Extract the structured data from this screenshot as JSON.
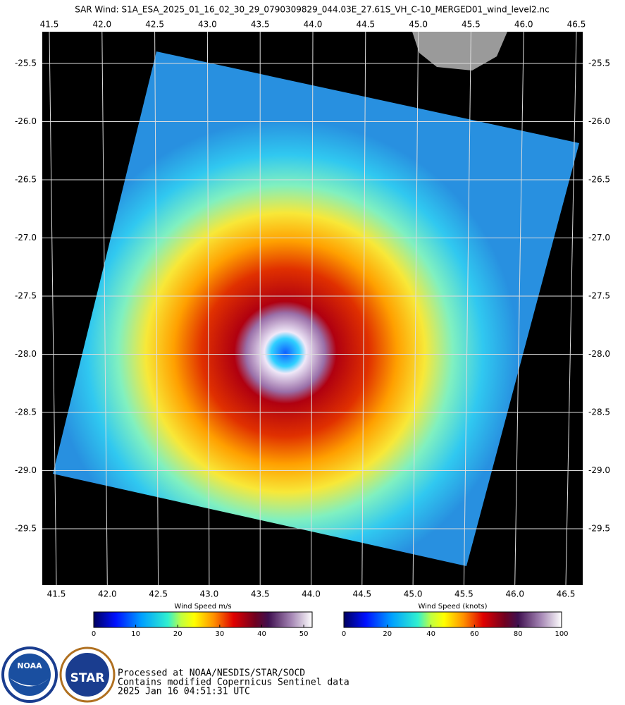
{
  "title": "SAR Wind: S1A_ESA_2025_01_16_02_30_29_0790309829_044.03E_27.61S_VH_C-10_MERGED01_wind_level2.nc",
  "map": {
    "xticks": [
      41.5,
      {
        "value": 42,
        "label": "42.0"
      },
      42.5,
      {
        "value": 43,
        "label": "43.0"
      },
      43.5,
      {
        "value": 44,
        "label": "44.0"
      },
      44.5,
      {
        "value": 45,
        "label": "45.0"
      },
      45.5,
      {
        "value": 46,
        "label": "46.0"
      },
      46.5
    ],
    "yticks": [
      -25.5,
      {
        "value": -26,
        "label": "-26.0"
      },
      -26.5,
      {
        "value": -27,
        "label": "-27.0"
      },
      -27.5,
      {
        "value": -28,
        "label": "-28.0"
      },
      -28.5,
      {
        "value": -29,
        "label": "-29.0"
      },
      -29.5
    ]
  },
  "colorbars": [
    {
      "label": "Wind Speed m/s",
      "lim": [
        0,
        52
      ],
      "ticks": [
        0,
        10,
        20,
        30,
        40,
        50
      ]
    },
    {
      "label": "Wind Speed (knots)",
      "lim": [
        0,
        100
      ],
      "ticks": [
        0,
        20,
        40,
        60,
        80,
        100
      ]
    }
  ],
  "logos": [
    "NOAA",
    "STAR"
  ],
  "footer": [
    "Processed at NOAA/NESDIS/STAR/SOCD",
    "Contains modified Copernicus Sentinel data",
    "2025 Jan 16 04:51:31 UTC"
  ]
}
